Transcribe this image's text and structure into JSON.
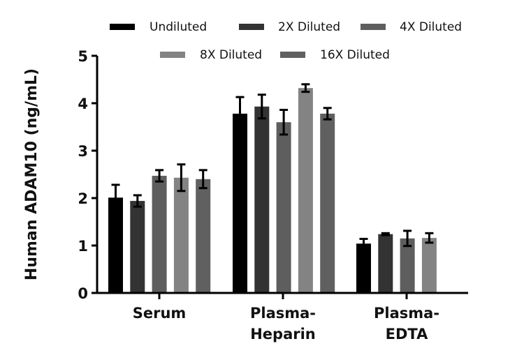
{
  "chart_data": {
    "type": "bar",
    "title": "",
    "xlabel": "",
    "ylabel": "Human ADAM10 (ng/mL)",
    "ylim": [
      0,
      5
    ],
    "yticks": [
      0,
      1,
      2,
      3,
      4,
      5
    ],
    "grid": false,
    "legend_position": "top",
    "categories": [
      "Serum",
      "Plasma-Heparin",
      "Plasma-EDTA"
    ],
    "category_labels": [
      [
        "Serum"
      ],
      [
        "Plasma-",
        "Heparin"
      ],
      [
        "Plasma-",
        "EDTA"
      ]
    ],
    "series": [
      {
        "name": "Undiluted",
        "color": "#000000",
        "values": [
          2.01,
          3.78,
          1.04
        ],
        "errors": [
          0.27,
          0.35,
          0.1
        ]
      },
      {
        "name": "2X Diluted",
        "color": "#333333",
        "values": [
          1.94,
          3.93,
          1.24
        ],
        "errors": [
          0.12,
          0.25,
          0.02
        ]
      },
      {
        "name": "4X Diluted",
        "color": "#5e5e5e",
        "values": [
          2.47,
          3.6,
          1.15
        ],
        "errors": [
          0.12,
          0.26,
          0.16
        ]
      },
      {
        "name": "8X Diluted",
        "color": "#838383",
        "values": [
          2.43,
          4.32,
          1.16
        ],
        "errors": [
          0.28,
          0.08,
          0.1
        ]
      },
      {
        "name": "16X Diluted",
        "color": "#606060",
        "values": [
          2.4,
          3.78,
          null
        ],
        "errors": [
          0.19,
          0.12,
          null
        ]
      }
    ]
  }
}
